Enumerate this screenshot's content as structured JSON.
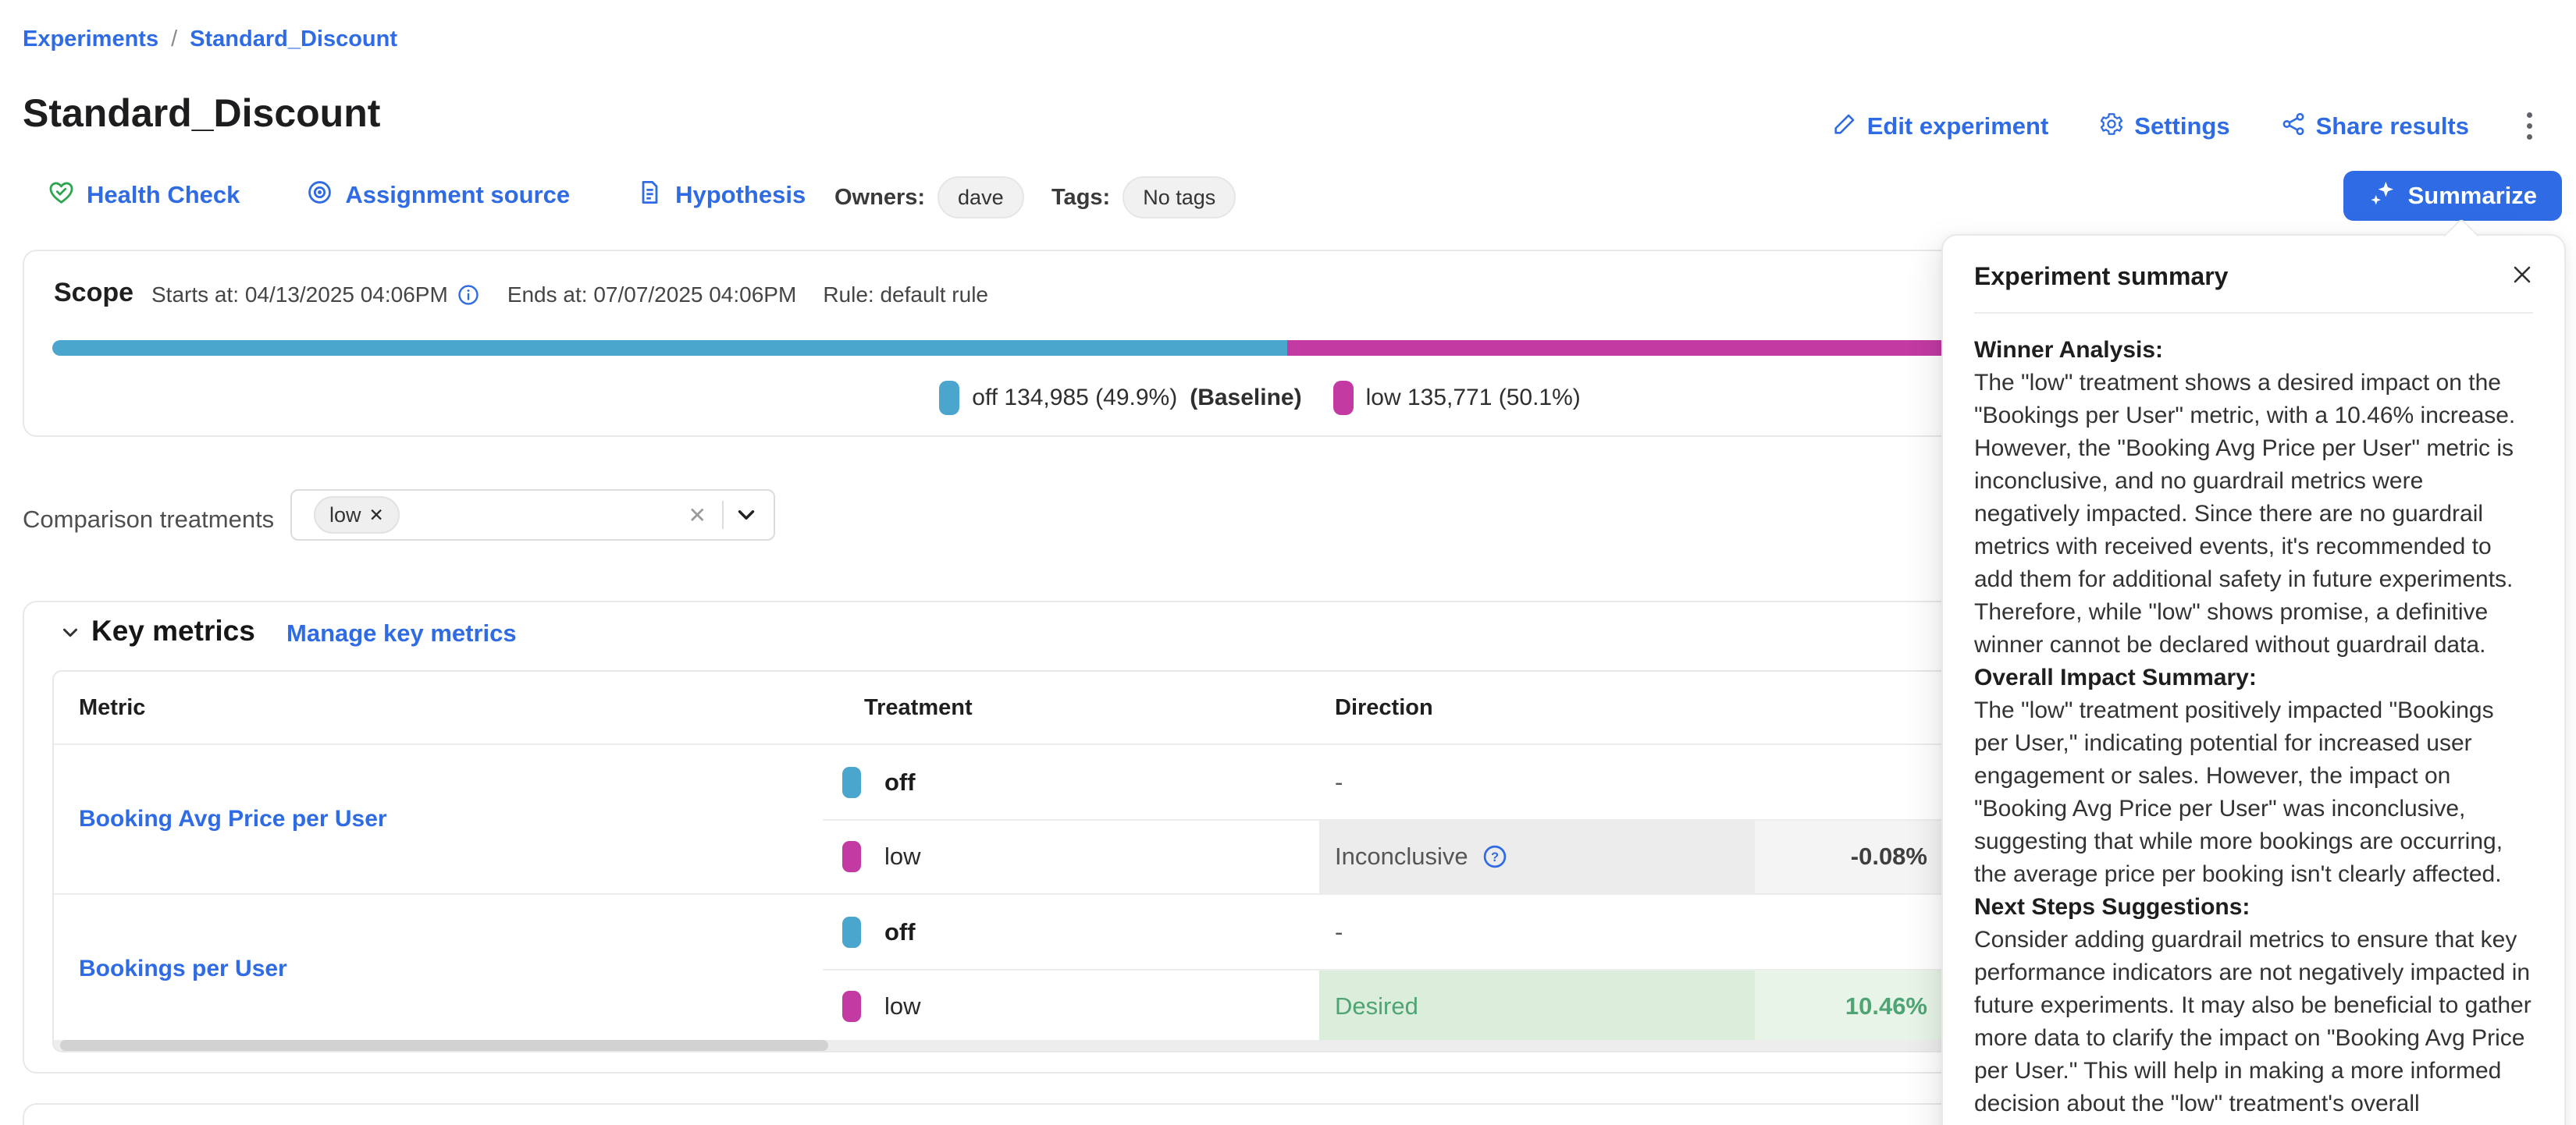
{
  "breadcrumb": {
    "separator": "/",
    "items": [
      {
        "label": "Experiments"
      },
      {
        "label": "Standard_Discount"
      }
    ]
  },
  "header": {
    "title": "Standard_Discount",
    "actions": [
      {
        "label": "Edit experiment",
        "icon": "pencil-icon"
      },
      {
        "label": "Settings",
        "icon": "gear-icon"
      },
      {
        "label": "Share results",
        "icon": "share-icon"
      }
    ],
    "more_menu_icon": "kebab-menu-icon"
  },
  "toolbar": {
    "links": [
      {
        "label": "Health Check",
        "icon": "heart-check-icon",
        "icon_color": "#2DA44E"
      },
      {
        "label": "Assignment source",
        "icon": "target-icon"
      },
      {
        "label": "Hypothesis",
        "icon": "document-icon"
      }
    ],
    "owners_label": "Owners:",
    "owner": "dave",
    "tags_label": "Tags:",
    "tags": "No tags",
    "summarize": {
      "label": "Summarize",
      "icon": "sparkles-icon",
      "bg": "#2E6BE4"
    }
  },
  "scope": {
    "title": "Scope",
    "starts": "Starts at: 04/13/2025 04:06PM",
    "info_icon": "info-circle-icon",
    "ends": "Ends at: 07/07/2025 04:06PM",
    "rule": "Rule: default rule",
    "allocation": {
      "segments": [
        {
          "name": "off",
          "color": "#4BA6CE",
          "width_pct": 49.9
        },
        {
          "name": "low",
          "color": "#C23AA2",
          "width_pct": 50.1
        }
      ],
      "legend": [
        {
          "label": "off 134,985 (49.9%)",
          "suffix": "(Baseline)",
          "color": "#4BA6CE"
        },
        {
          "label": "low 135,771 (50.1%)",
          "suffix": "",
          "color": "#C23AA2"
        }
      ]
    }
  },
  "comparison": {
    "label": "Comparison treatments",
    "chip": "low",
    "chip_remove": "✕",
    "clear_glyph": "✕",
    "dropdown_icon": "chevron-down-icon"
  },
  "key_metrics": {
    "collapse_icon": "chevron-down-icon",
    "title": "Key metrics",
    "manage_link": "Manage key metrics",
    "columns": [
      "Metric",
      "Treatment",
      "Direction"
    ],
    "rows": [
      {
        "metric": "Booking Avg Price per User",
        "treatments": [
          {
            "name": "off",
            "color": "#4BA6CE",
            "direction": "-",
            "value": "",
            "type": "none"
          },
          {
            "name": "low",
            "color": "#C23AA2",
            "direction": "Inconclusive",
            "help_icon": "question-circle-icon",
            "value": "-0.08%",
            "type": "inconclusive"
          }
        ]
      },
      {
        "metric": "Bookings per User",
        "treatments": [
          {
            "name": "off",
            "color": "#4BA6CE",
            "direction": "-",
            "value": "",
            "type": "none"
          },
          {
            "name": "low",
            "color": "#C23AA2",
            "direction": "Desired",
            "value": "10.46%",
            "type": "desired"
          }
        ]
      }
    ]
  },
  "summary_panel": {
    "title": "Experiment summary",
    "close_glyph": "✕",
    "sections": [
      {
        "heading": "Winner Analysis:",
        "body": "The \"low\" treatment shows a desired impact on the \"Bookings per User\" metric, with a 10.46% increase. However, the \"Booking Avg Price per User\" metric is inconclusive, and no guardrail metrics were negatively impacted. Since there are no guardrail metrics with received events, it's recommended to add them for additional safety in future experiments. Therefore, while \"low\" shows promise, a definitive winner cannot be declared without guardrail data."
      },
      {
        "heading": "Overall Impact Summary:",
        "body": "The \"low\" treatment positively impacted \"Bookings per User,\" indicating potential for increased user engagement or sales. However, the impact on \"Booking Avg Price per User\" was inconclusive, suggesting that while more bookings are occurring, the average price per booking isn't clearly affected."
      },
      {
        "heading": "Next Steps Suggestions:",
        "body": "Consider adding guardrail metrics to ensure that key performance indicators are not negatively impacted in future experiments. It may also be beneficial to gather more data to clarify the impact on \"Booking Avg Price per User.\" This will help in making a more informed decision about the \"low\" treatment's overall"
      }
    ]
  },
  "colors": {
    "primary_blue": "#2E6BE4",
    "teal": "#4BA6CE",
    "magenta": "#C23AA2",
    "success_green": "#4FA473",
    "health_green": "#2DA44E"
  }
}
